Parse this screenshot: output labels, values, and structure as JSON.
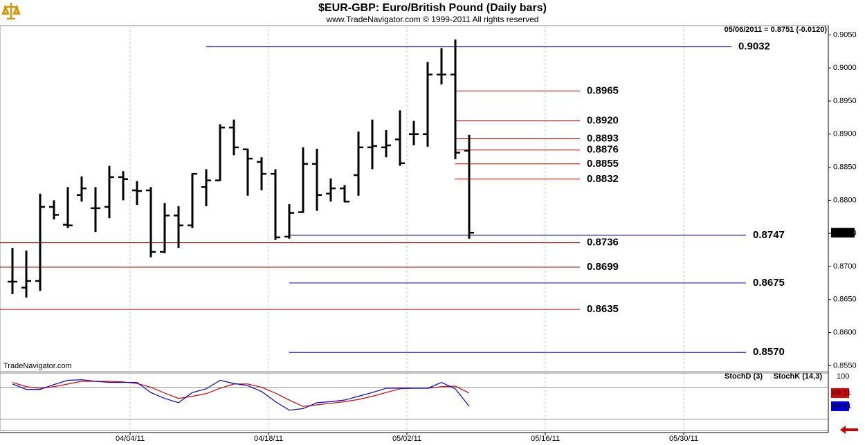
{
  "header": {
    "title": "$EUR-GBP:  Euro/British Pound  (Daily bars)",
    "subtitle": "www.TradeNavigator.com © 1999-2011 All rights reserved",
    "quote": "05/06/2011 = 0.8751 (-0.0120)",
    "watermark": "TradeNavigator.com"
  },
  "chart_data": [
    {
      "type": "ohlc",
      "categories": [
        null,
        null,
        null,
        null,
        null,
        null,
        null,
        null,
        null,
        "04/04/11",
        null,
        null,
        null,
        null,
        null,
        null,
        null,
        null,
        null,
        "04/18/11",
        null,
        null,
        null,
        null,
        null,
        null,
        null,
        null,
        null,
        "05/02/11",
        null,
        null,
        null,
        null,
        null,
        null,
        null,
        null,
        null,
        "05/16/11",
        null,
        null,
        null,
        null,
        null,
        null,
        null,
        null,
        null,
        "05/30/11",
        null,
        null,
        null,
        null,
        null,
        null,
        null,
        null,
        null
      ],
      "open": [
        0.8677,
        0.8668,
        0.8678,
        0.879,
        0.8763,
        0.8808,
        0.8788,
        0.879,
        0.8835,
        0.8815,
        0.8815,
        0.8722,
        0.8777,
        0.8762,
        0.882,
        0.883,
        0.891,
        0.8877,
        0.8858,
        0.884,
        0.8745,
        0.8782,
        0.8855,
        0.881,
        0.8818,
        0.8838,
        0.888,
        0.888,
        0.8892,
        0.89,
        0.89,
        0.899,
        0.899,
        0.8875,
        null,
        null,
        null,
        null,
        null,
        null,
        null,
        null,
        null,
        null,
        null,
        null,
        null,
        null,
        null,
        null,
        null,
        null,
        null,
        null,
        null,
        null,
        null,
        null,
        null
      ],
      "high": [
        0.8728,
        0.8724,
        0.881,
        0.88,
        0.882,
        0.8836,
        0.882,
        0.8852,
        0.8844,
        0.8829,
        0.882,
        0.8796,
        0.8791,
        0.8841,
        0.8847,
        0.8915,
        0.8922,
        0.8878,
        0.8865,
        0.8847,
        0.8794,
        0.888,
        0.8878,
        0.8833,
        0.8823,
        0.8904,
        0.8922,
        0.8906,
        0.8936,
        0.892,
        0.9009,
        0.903,
        0.9043,
        0.8899,
        null,
        null,
        null,
        null,
        null,
        null,
        null,
        null,
        null,
        null,
        null,
        null,
        null,
        null,
        null,
        null,
        null,
        null,
        null,
        null,
        null,
        null,
        null,
        null,
        null
      ],
      "low": [
        0.8658,
        0.8653,
        0.8663,
        0.8771,
        0.8758,
        0.8798,
        0.8752,
        0.8773,
        0.88,
        0.8793,
        0.8714,
        0.872,
        0.8728,
        0.8758,
        0.8791,
        0.8829,
        0.8868,
        0.8807,
        0.8815,
        0.874,
        0.8742,
        0.8781,
        0.8784,
        0.8798,
        0.8797,
        0.8807,
        0.8847,
        0.8865,
        0.8852,
        0.8883,
        0.8881,
        0.8975,
        0.8862,
        0.8742,
        null,
        null,
        null,
        null,
        null,
        null,
        null,
        null,
        null,
        null,
        null,
        null,
        null,
        null,
        null,
        null,
        null,
        null,
        null,
        null,
        null,
        null,
        null,
        null,
        null
      ],
      "close": [
        0.8677,
        0.8678,
        0.879,
        0.8778,
        0.8762,
        0.8818,
        0.8788,
        0.8835,
        0.8832,
        0.8814,
        0.8722,
        0.8777,
        0.8762,
        0.884,
        0.883,
        0.891,
        0.888,
        0.8863,
        0.884,
        0.8744,
        0.8781,
        0.8855,
        0.8808,
        0.8818,
        0.8798,
        0.888,
        0.8882,
        0.8883,
        0.8856,
        0.89,
        0.899,
        0.899,
        0.8872,
        0.8751,
        null,
        null,
        null,
        null,
        null,
        null,
        null,
        null,
        null,
        null,
        null,
        null,
        null,
        null,
        null,
        null,
        null,
        null,
        null,
        null,
        null,
        null,
        null,
        null,
        null
      ],
      "color": "#000000",
      "ylim": [
        0.8541,
        0.9064
      ],
      "yticks": [
        {
          "value": 0.905,
          "label": "0.9050"
        },
        {
          "value": 0.9,
          "label": "0.9000"
        },
        {
          "value": 0.895,
          "label": "0.8950"
        },
        {
          "value": 0.89,
          "label": "0.8900"
        },
        {
          "value": 0.885,
          "label": "0.8850"
        },
        {
          "value": 0.88,
          "label": "0.8800"
        },
        {
          "value": 0.875,
          "label": "0.8750"
        },
        {
          "value": 0.87,
          "label": "0.8700"
        },
        {
          "value": 0.865,
          "label": "0.8650"
        },
        {
          "value": 0.86,
          "label": "0.8600"
        },
        {
          "value": 0.855,
          "label": "0.8550"
        }
      ],
      "last_price": 0.8751,
      "levels": [
        {
          "value": 0.9032,
          "color": "#0000cc"
        },
        {
          "value": 0.8965,
          "color": "#cc0000"
        },
        {
          "value": 0.892,
          "label": "0.8920",
          "color": "#cc0000"
        },
        {
          "value": 0.8893,
          "color": "#cc0000"
        },
        {
          "value": 0.8876,
          "color": "#cc0000"
        },
        {
          "value": 0.8855,
          "color": "#cc0000"
        },
        {
          "value": 0.8832,
          "color": "#cc0000"
        },
        {
          "value": 0.8747,
          "color": "#0000cc"
        },
        {
          "value": 0.8736,
          "color": "#cc0000"
        },
        {
          "value": 0.8699,
          "color": "#cc0000"
        },
        {
          "value": 0.8675,
          "color": "#0000cc"
        },
        {
          "value": 0.8635,
          "color": "#cc0000"
        },
        {
          "value": 0.857,
          "label": "0.8570",
          "color": "#0000cc"
        }
      ],
      "grid": true
    },
    {
      "type": "line",
      "ylim": [
        -1,
        106.6
      ],
      "yticks": [
        100
      ],
      "guide_lines": [
        80,
        20
      ],
      "series": [
        {
          "name": "StochD (3)",
          "color": "#dd0000",
          "values": [
            89,
            81,
            78,
            81,
            86,
            91,
            91,
            91,
            90,
            87,
            80,
            69,
            59,
            63,
            68,
            78,
            86,
            86,
            80,
            69,
            56,
            44,
            47,
            50,
            53,
            57,
            63,
            70,
            77,
            78,
            78,
            81,
            82,
            69.11,
            null,
            null,
            null,
            null,
            null,
            null,
            null,
            null,
            null,
            null,
            null,
            null,
            null,
            null,
            null,
            null,
            null,
            null,
            null,
            null,
            null,
            null,
            null,
            null,
            null
          ]
        },
        {
          "name": "StochK (14,3)",
          "color": "#0000dd",
          "values": [
            86,
            76,
            76,
            85,
            93,
            94,
            91,
            89,
            89,
            89,
            70,
            59,
            51,
            70,
            77,
            93,
            87,
            83,
            72,
            53,
            37,
            40,
            51,
            53,
            56,
            63,
            70,
            78,
            78,
            78,
            78,
            89,
            77,
            44.41,
            null,
            null,
            null,
            null,
            null,
            null,
            null,
            null,
            null,
            null,
            null,
            null,
            null,
            null,
            null,
            null,
            null,
            null,
            null,
            null,
            null,
            null,
            null,
            null,
            null
          ]
        }
      ]
    }
  ]
}
